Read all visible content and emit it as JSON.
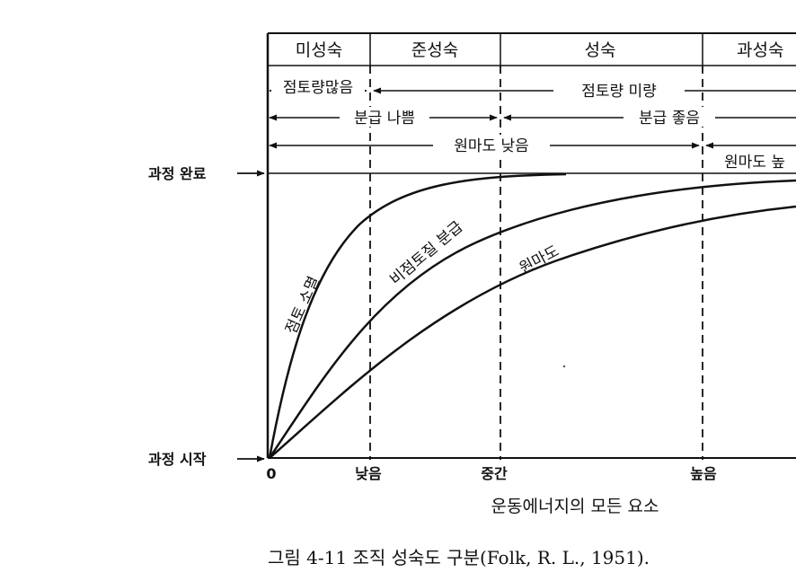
{
  "header": {
    "stages": [
      "미성숙",
      "준성숙",
      "성숙",
      "과성숙"
    ]
  },
  "ranges": {
    "clay_many": "점토량많음",
    "clay_little": "점토량 미량",
    "sorting_poor": "분급 나쁨",
    "sorting_good": "분급 좋음",
    "rounding_low": "원마도 낮음",
    "rounding_high": "원마도 높"
  },
  "side_labels": {
    "complete": "과정 완료",
    "start": "과정 시작"
  },
  "curves": {
    "clay_removal": "점토 소멸",
    "nonclay_sorting": "비점토질 분급",
    "rounding": "원마도"
  },
  "x_axis": {
    "ticks": [
      "0",
      "낮음",
      "중간",
      "높음"
    ],
    "label": "운동에너지의 모든 요소"
  },
  "caption": "그림 4-11  조직 성숙도 구분(Folk, R. L., 1951)."
}
